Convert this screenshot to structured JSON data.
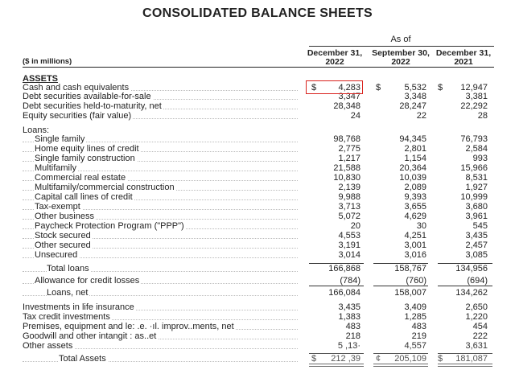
{
  "title": "CONSOLIDATED BALANCE SHEETS",
  "as_of": "As of",
  "units": "($ in millions)",
  "columns": [
    {
      "line1": "December 31,",
      "line2": "2022"
    },
    {
      "line1": "September 30,",
      "line2": "2022"
    },
    {
      "line1": "December 31,",
      "line2": "2021"
    }
  ],
  "currency_symbol": "$",
  "highlight_color": "#d9231e",
  "rows": [
    {
      "label": "ASSETS",
      "values": [
        "",
        "",
        ""
      ],
      "style": "section"
    },
    {
      "label": "Cash and cash equivalents",
      "values": [
        "4,283",
        "5,532",
        "12,947"
      ],
      "currency": true
    },
    {
      "label": "Debt securities available-for-sale",
      "values": [
        "3,347",
        "3,348",
        "3,381"
      ]
    },
    {
      "label": "Debt securities held-to-maturity, net",
      "values": [
        "28,348",
        "28,247",
        "22,292"
      ]
    },
    {
      "label": "Equity securities (fair value)",
      "values": [
        "24",
        "22",
        "28"
      ]
    },
    {
      "label": "Loans:",
      "values": [
        "",
        "",
        ""
      ]
    },
    {
      "label": "Single family",
      "values": [
        "98,768",
        "94,345",
        "76,793"
      ],
      "indent": 1
    },
    {
      "label": "Home equity lines of credit",
      "values": [
        "2,775",
        "2,801",
        "2,584"
      ],
      "indent": 1
    },
    {
      "label": "Single family construction",
      "values": [
        "1,217",
        "1,154",
        "993"
      ],
      "indent": 1
    },
    {
      "label": "Multifamily",
      "values": [
        "21,588",
        "20,364",
        "15,966"
      ],
      "indent": 1
    },
    {
      "label": "Commercial real estate",
      "values": [
        "10,830",
        "10,039",
        "8,531"
      ],
      "indent": 1
    },
    {
      "label": "Multifamily/commercial construction",
      "values": [
        "2,139",
        "2,089",
        "1,927"
      ],
      "indent": 1
    },
    {
      "label": "Capital call lines of credit",
      "values": [
        "9,988",
        "9,393",
        "10,999"
      ],
      "indent": 1
    },
    {
      "label": "Tax-exempt",
      "values": [
        "3,713",
        "3,655",
        "3,680"
      ],
      "indent": 1
    },
    {
      "label": "Other business",
      "values": [
        "5,072",
        "4,629",
        "3,961"
      ],
      "indent": 1
    },
    {
      "label": "Paycheck Protection Program (\"PPP\")",
      "values": [
        "20",
        "30",
        "545"
      ],
      "indent": 1
    },
    {
      "label": "Stock secured",
      "values": [
        "4,553",
        "4,251",
        "3,435"
      ],
      "indent": 1
    },
    {
      "label": "Other secured",
      "values": [
        "3,191",
        "3,001",
        "2,457"
      ],
      "indent": 1
    },
    {
      "label": "Unsecured",
      "values": [
        "3,014",
        "3,016",
        "3,085"
      ],
      "indent": 1
    },
    {
      "label": "Total loans",
      "values": [
        "166,868",
        "158,767",
        "134,956"
      ],
      "indent": 2
    },
    {
      "label": "Allowance for credit losses",
      "values": [
        "(784)",
        "(760)",
        "(694)"
      ],
      "indent": 1
    },
    {
      "label": "Loans, net",
      "values": [
        "166,084",
        "158,007",
        "134,262"
      ],
      "indent": 2
    },
    {
      "label": "Investments in life insurance",
      "values": [
        "3,435",
        "3,409",
        "2,650"
      ]
    },
    {
      "label": "Tax credit investments",
      "values": [
        "1,383",
        "1,285",
        "1,220"
      ]
    },
    {
      "label": "Premises, equipment and le: .e. ·ıl. improv..ments, net",
      "values": [
        "483",
        "483",
        "454"
      ]
    },
    {
      "label": "Goodwill and other intangit : as..et",
      "values": [
        "218",
        "219",
        "222"
      ]
    },
    {
      "label": "Other assets",
      "values": [
        "5 ,13·",
        "4,557",
        "3,631"
      ]
    },
    {
      "label": "Total Assets",
      "values": [
        "212 ,39",
        "205,109",
        "181,087"
      ],
      "indent": 3,
      "currency": true,
      "currency_symbols": [
        "$",
        "¢",
        "$"
      ]
    }
  ]
}
